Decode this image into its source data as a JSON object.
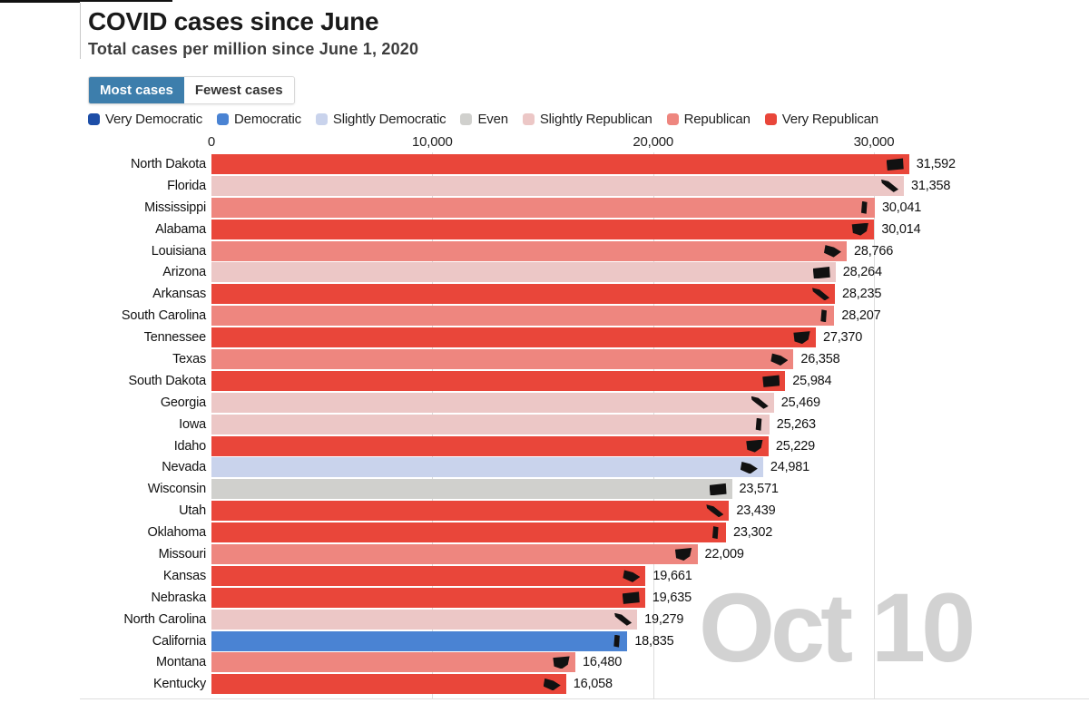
{
  "header": {
    "title": "COVID cases since June",
    "subtitle": "Total cases per million since June 1, 2020"
  },
  "tabs": [
    {
      "label": "Most cases",
      "active": true
    },
    {
      "label": "Fewest cases",
      "active": false
    }
  ],
  "legend": [
    {
      "label": "Very Democratic",
      "color": "#1d4ea7"
    },
    {
      "label": "Democratic",
      "color": "#4a83d3"
    },
    {
      "label": "Slightly Democratic",
      "color": "#c9d3ec"
    },
    {
      "label": "Even",
      "color": "#d0d0cd"
    },
    {
      "label": "Slightly Republican",
      "color": "#ecc7c6"
    },
    {
      "label": "Republican",
      "color": "#ee867f"
    },
    {
      "label": "Very Republican",
      "color": "#e9463a"
    }
  ],
  "watermark": "Oct 10",
  "chart_data": {
    "type": "bar",
    "orientation": "horizontal",
    "title": "COVID cases since June",
    "subtitle": "Total cases per million since June 1, 2020",
    "xlim": [
      0,
      30000
    ],
    "x_ticks": [
      "0",
      "10,000",
      "20,000",
      "30,000"
    ],
    "x_tick_values": [
      0,
      10000,
      20000,
      30000
    ],
    "grid": true,
    "date_annotation": "Oct 10",
    "rows": [
      {
        "state": "North Dakota",
        "value": 31592,
        "label": "31,592",
        "lean": "Very Republican"
      },
      {
        "state": "Florida",
        "value": 31358,
        "label": "31,358",
        "lean": "Slightly Republican"
      },
      {
        "state": "Mississippi",
        "value": 30041,
        "label": "30,041",
        "lean": "Republican"
      },
      {
        "state": "Alabama",
        "value": 30014,
        "label": "30,014",
        "lean": "Very Republican"
      },
      {
        "state": "Louisiana",
        "value": 28766,
        "label": "28,766",
        "lean": "Republican"
      },
      {
        "state": "Arizona",
        "value": 28264,
        "label": "28,264",
        "lean": "Slightly Republican"
      },
      {
        "state": "Arkansas",
        "value": 28235,
        "label": "28,235",
        "lean": "Very Republican"
      },
      {
        "state": "South Carolina",
        "value": 28207,
        "label": "28,207",
        "lean": "Republican"
      },
      {
        "state": "Tennessee",
        "value": 27370,
        "label": "27,370",
        "lean": "Very Republican"
      },
      {
        "state": "Texas",
        "value": 26358,
        "label": "26,358",
        "lean": "Republican"
      },
      {
        "state": "South Dakota",
        "value": 25984,
        "label": "25,984",
        "lean": "Very Republican"
      },
      {
        "state": "Georgia",
        "value": 25469,
        "label": "25,469",
        "lean": "Slightly Republican"
      },
      {
        "state": "Iowa",
        "value": 25263,
        "label": "25,263",
        "lean": "Slightly Republican"
      },
      {
        "state": "Idaho",
        "value": 25229,
        "label": "25,229",
        "lean": "Very Republican"
      },
      {
        "state": "Nevada",
        "value": 24981,
        "label": "24,981",
        "lean": "Slightly Democratic"
      },
      {
        "state": "Wisconsin",
        "value": 23571,
        "label": "23,571",
        "lean": "Even"
      },
      {
        "state": "Utah",
        "value": 23439,
        "label": "23,439",
        "lean": "Very Republican"
      },
      {
        "state": "Oklahoma",
        "value": 23302,
        "label": "23,302",
        "lean": "Very Republican"
      },
      {
        "state": "Missouri",
        "value": 22009,
        "label": "22,009",
        "lean": "Republican"
      },
      {
        "state": "Kansas",
        "value": 19661,
        "label": "19,661",
        "lean": "Very Republican"
      },
      {
        "state": "Nebraska",
        "value": 19635,
        "label": "19,635",
        "lean": "Very Republican"
      },
      {
        "state": "North Carolina",
        "value": 19279,
        "label": "19,279",
        "lean": "Slightly Republican"
      },
      {
        "state": "California",
        "value": 18835,
        "label": "18,835",
        "lean": "Democratic"
      },
      {
        "state": "Montana",
        "value": 16480,
        "label": "16,480",
        "lean": "Republican"
      },
      {
        "state": "Kentucky",
        "value": 16058,
        "label": "16,058",
        "lean": "Very Republican"
      }
    ]
  }
}
